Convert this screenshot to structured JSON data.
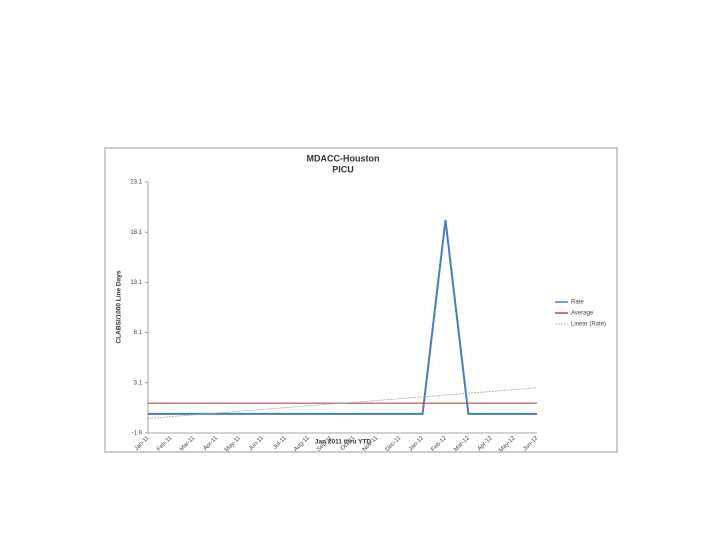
{
  "chart_data": {
    "type": "line",
    "title": "MDACC-Houston",
    "subtitle": "PICU",
    "y_label": "CLABSI/1000 Line Days",
    "x_label": "Jan 2011 thru YTD",
    "categories": [
      "Jan-11",
      "Feb-11",
      "Mar-11",
      "Apr-11",
      "May-11",
      "Jun-11",
      "Jul-11",
      "Aug-11",
      "Sep-11",
      "Oct-11",
      "Nov-11",
      "Dec-11",
      "Jan-12",
      "Feb-12",
      "Mar-12",
      "Apr-12",
      "May-12",
      "Jun-12"
    ],
    "series": [
      {
        "name": "Rate",
        "color": "#4a7ebb",
        "values": [
          0,
          0,
          0,
          0,
          0,
          0,
          0,
          0,
          0,
          0,
          0,
          0,
          0,
          19.3,
          0,
          0,
          0,
          0
        ]
      },
      {
        "name": "Average",
        "color": "#be4b48",
        "values": [
          1.07,
          1.07,
          1.07,
          1.07,
          1.07,
          1.07,
          1.07,
          1.07,
          1.07,
          1.07,
          1.07,
          1.07,
          1.07,
          1.07,
          1.07,
          1.07,
          1.07,
          1.07
        ]
      },
      {
        "name": "Linear (Rate)",
        "color": "#a6a6a6",
        "dashed": true,
        "values": [
          -0.45,
          -0.27,
          -0.09,
          0.09,
          0.27,
          0.45,
          0.63,
          0.81,
          0.99,
          1.16,
          1.34,
          1.52,
          1.7,
          1.88,
          2.06,
          2.24,
          2.42,
          2.6
        ]
      }
    ],
    "ylim": [
      -1.9,
      23.1
    ],
    "yticks": [
      {
        "value": -1.9,
        "label": "-1.9"
      },
      3.1,
      8.1,
      13.1,
      18.1,
      23.1
    ],
    "legend": "right",
    "grid": false
  }
}
